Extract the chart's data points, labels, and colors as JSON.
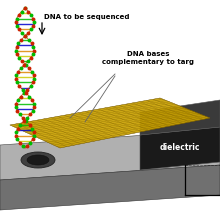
{
  "bg_color": "#ffffff",
  "text_dna_to_be_sequenced": "DNA to be sequenced",
  "text_dna_bases": "DNA bases\ncomplementary to targ",
  "text_dielectric": "dielectric",
  "plate_top_color": "#b0b0b0",
  "plate_side_color": "#707070",
  "plate_bottom_color": "#505050",
  "dielectric_face_color": "#1a1a1a",
  "dielectric_top_color": "#3a3a3a",
  "dielectric_side_color": "#0a0a0a",
  "mesh_fill": "#c8a000",
  "mesh_line": "#7a5c00",
  "hole_outer": "#404040",
  "hole_inner": "#1a1a1a",
  "dna_green": "#00bb00",
  "dna_red": "#cc2200",
  "dna_blue": "#0000cc",
  "dna_orange": "#dd8800",
  "dna_yellow": "#cccc00",
  "connector_line": "#666666",
  "arrow_color": "#000000"
}
